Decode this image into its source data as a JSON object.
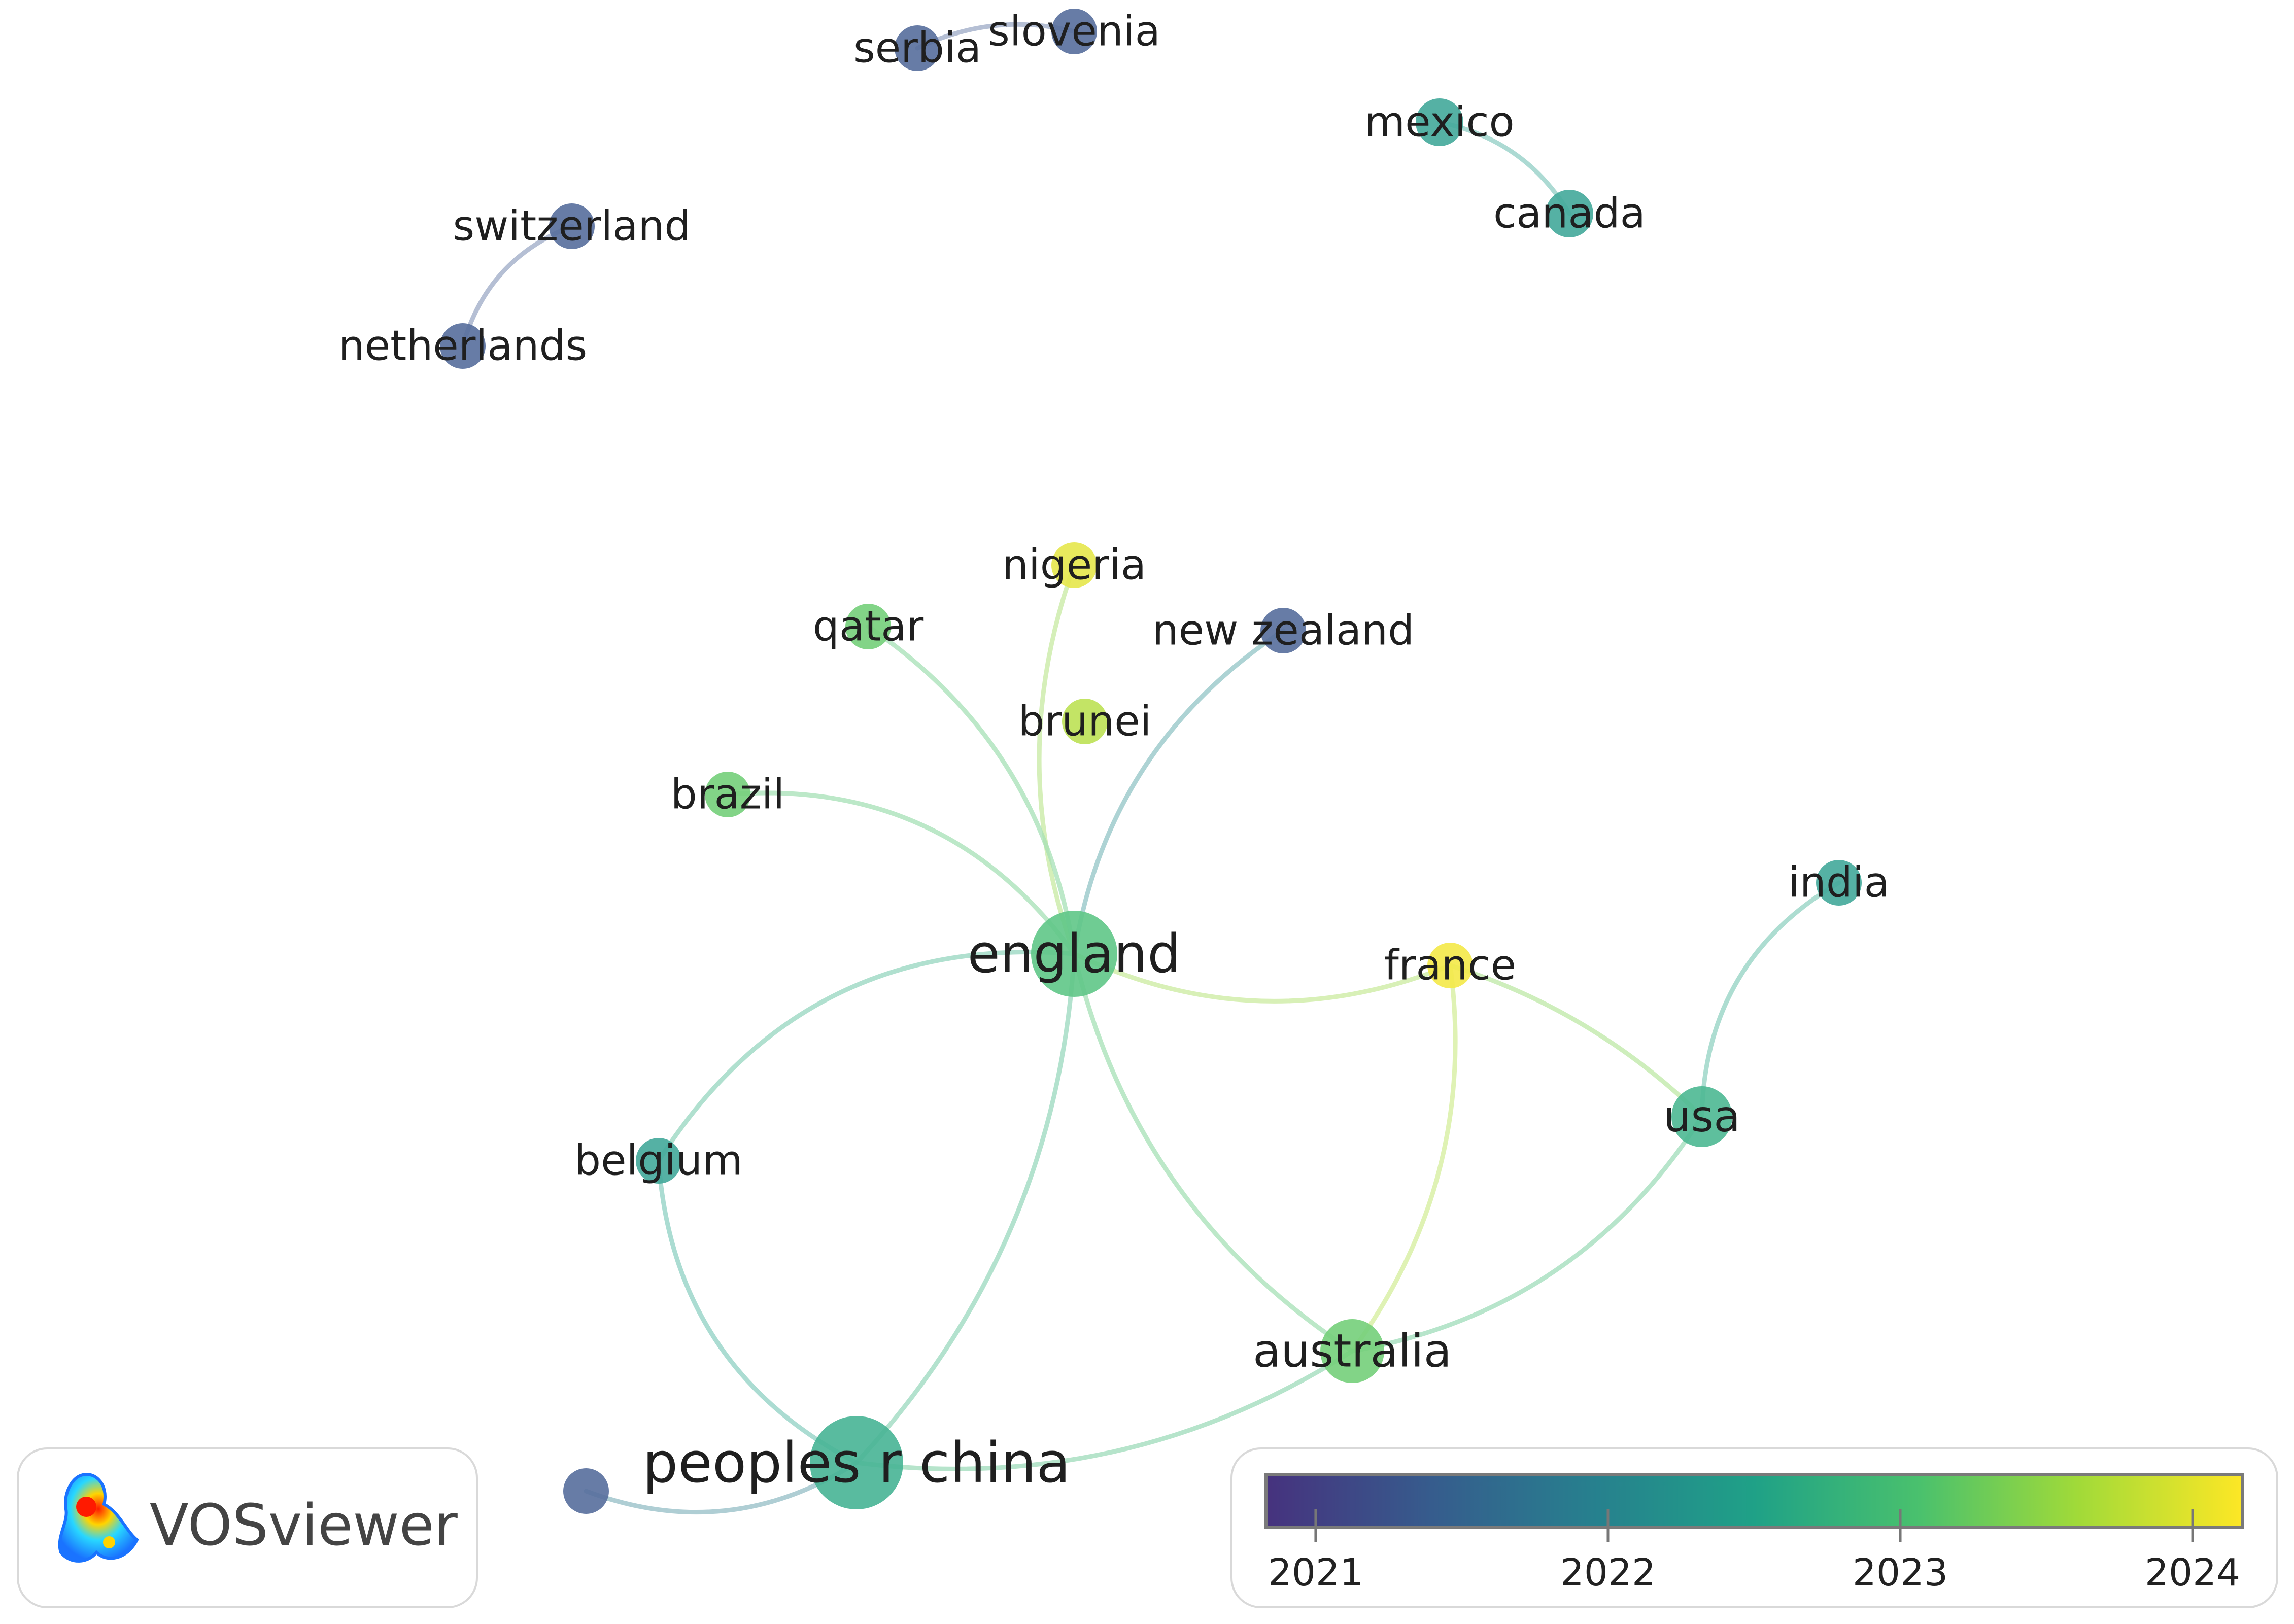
{
  "network": {
    "nodes": [
      {
        "id": "serbia",
        "label": "serbia",
        "year": 2021.3
      },
      {
        "id": "slovenia",
        "label": "slovenia",
        "year": 2021.3
      },
      {
        "id": "mexico",
        "label": "mexico",
        "year": 2022.4
      },
      {
        "id": "canada",
        "label": "canada",
        "year": 2022.4
      },
      {
        "id": "switzerland",
        "label": "switzerland",
        "year": 2021.3
      },
      {
        "id": "netherlands",
        "label": "netherlands",
        "year": 2021.3
      },
      {
        "id": "nigeria",
        "label": "nigeria",
        "year": 2024.0
      },
      {
        "id": "qatar",
        "label": "qatar",
        "year": 2023.2
      },
      {
        "id": "new_zealand",
        "label": "new zealand",
        "year": 2021.3
      },
      {
        "id": "brunei",
        "label": "brunei",
        "year": 2023.7
      },
      {
        "id": "brazil",
        "label": "brazil",
        "year": 2023.2
      },
      {
        "id": "india",
        "label": "india",
        "year": 2022.4
      },
      {
        "id": "england",
        "label": "england",
        "year": 2023.0
      },
      {
        "id": "france",
        "label": "france",
        "year": 2024.1
      },
      {
        "id": "usa",
        "label": "usa",
        "year": 2022.7
      },
      {
        "id": "belgium",
        "label": "belgium",
        "year": 2022.4
      },
      {
        "id": "australia",
        "label": "australia",
        "year": 2023.2
      },
      {
        "id": "peoples_r_china",
        "label": "peoples r china",
        "year": 2022.6
      },
      {
        "id": "unlabeled",
        "label": "",
        "year": 2021.3
      }
    ],
    "links": [
      [
        "serbia",
        "slovenia"
      ],
      [
        "mexico",
        "canada"
      ],
      [
        "switzerland",
        "netherlands"
      ],
      [
        "england",
        "nigeria"
      ],
      [
        "england",
        "qatar"
      ],
      [
        "england",
        "new_zealand"
      ],
      [
        "england",
        "brazil"
      ],
      [
        "england",
        "france"
      ],
      [
        "england",
        "belgium"
      ],
      [
        "england",
        "australia"
      ],
      [
        "england",
        "peoples_r_china"
      ],
      [
        "france",
        "usa"
      ],
      [
        "france",
        "australia"
      ],
      [
        "usa",
        "india"
      ],
      [
        "usa",
        "australia"
      ],
      [
        "belgium",
        "peoples_r_china"
      ],
      [
        "australia",
        "peoples_r_china"
      ],
      [
        "peoples_r_china",
        "unlabeled"
      ]
    ]
  },
  "legend": {
    "ticks": [
      "2021",
      "2022",
      "2023",
      "2024"
    ],
    "range": [
      2020.83,
      2024.17
    ],
    "colors": [
      "#46327e",
      "#365c8d",
      "#277f8e",
      "#1fa187",
      "#4ac16d",
      "#a0da39",
      "#fde725"
    ]
  },
  "brand": {
    "name": "VOSviewer",
    "icon": "vosviewer-logo-icon"
  }
}
